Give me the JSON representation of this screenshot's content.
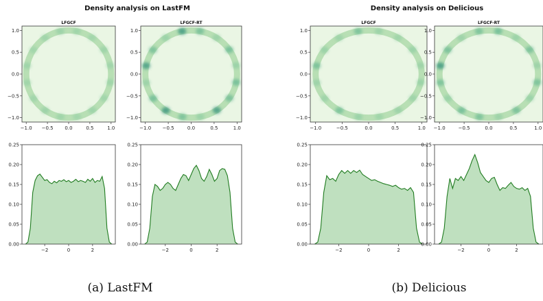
{
  "figure": {
    "captions": [
      "(a) LastFM",
      "(b) Delicious"
    ]
  },
  "chart_data": [
    {
      "type": "heatmap",
      "panel": "LastFM / LFGCF",
      "suptitle": "Density analysis on LastFM",
      "title": "LFGCF",
      "xlim": [
        -1.1,
        1.1
      ],
      "ylim": [
        -1.1,
        1.1
      ],
      "xticks": [
        -1.0,
        -0.5,
        0.0,
        0.5,
        1.0
      ],
      "yticks": [
        -1.0,
        -0.5,
        0.0,
        0.5,
        1.0
      ],
      "ring_radius": 1.0,
      "ring_density": [
        0.35,
        0.45,
        0.3,
        0.4,
        0.5,
        0.35,
        0.3,
        0.45,
        0.4,
        0.35,
        0.5,
        0.4,
        0.3,
        0.45,
        0.35,
        0.4
      ],
      "colormap": "Greens"
    },
    {
      "type": "heatmap",
      "panel": "LastFM / LFGCF-RT",
      "title": "LFGCF-RT",
      "xlim": [
        -1.1,
        1.1
      ],
      "ylim": [
        -1.1,
        1.1
      ],
      "xticks": [
        -1.0,
        -0.5,
        0.0,
        0.5,
        1.0
      ],
      "yticks": [
        -1.0,
        -0.5,
        0.0,
        0.5,
        1.0
      ],
      "ring_radius": 1.0,
      "ring_density": [
        0.55,
        0.7,
        0.5,
        0.65,
        0.8,
        0.55,
        0.6,
        0.75,
        0.5,
        0.7,
        0.85,
        0.6,
        0.55,
        0.75,
        0.65,
        0.7
      ],
      "colormap": "Greens"
    },
    {
      "type": "area",
      "panel": "LastFM / LFGCF angle KDE",
      "xlim": [
        -3.9,
        3.9
      ],
      "ylim": [
        0.0,
        0.25
      ],
      "xticks": [
        -2,
        0,
        2
      ],
      "yticks": [
        0.0,
        0.05,
        0.1,
        0.15,
        0.2,
        0.25
      ],
      "x": [
        -3.6,
        -3.4,
        -3.2,
        -3.0,
        -2.8,
        -2.6,
        -2.4,
        -2.2,
        -2.0,
        -1.8,
        -1.6,
        -1.4,
        -1.2,
        -1.0,
        -0.8,
        -0.6,
        -0.4,
        -0.2,
        0.0,
        0.2,
        0.4,
        0.6,
        0.8,
        1.0,
        1.2,
        1.4,
        1.6,
        1.8,
        2.0,
        2.2,
        2.4,
        2.6,
        2.8,
        3.0,
        3.2,
        3.4,
        3.6
      ],
      "y": [
        0.0,
        0.005,
        0.04,
        0.13,
        0.16,
        0.172,
        0.176,
        0.168,
        0.16,
        0.162,
        0.155,
        0.152,
        0.158,
        0.154,
        0.16,
        0.158,
        0.162,
        0.157,
        0.16,
        0.155,
        0.158,
        0.163,
        0.157,
        0.16,
        0.158,
        0.155,
        0.163,
        0.158,
        0.165,
        0.155,
        0.16,
        0.158,
        0.17,
        0.14,
        0.04,
        0.005,
        0.0
      ]
    },
    {
      "type": "area",
      "panel": "LastFM / LFGCF-RT angle KDE",
      "xlim": [
        -3.9,
        3.9
      ],
      "ylim": [
        0.0,
        0.25
      ],
      "xticks": [
        -2,
        0,
        2
      ],
      "yticks": [
        0.0,
        0.05,
        0.1,
        0.15,
        0.2,
        0.25
      ],
      "x": [
        -3.6,
        -3.4,
        -3.2,
        -3.0,
        -2.8,
        -2.6,
        -2.4,
        -2.2,
        -2.0,
        -1.8,
        -1.6,
        -1.4,
        -1.2,
        -1.0,
        -0.8,
        -0.6,
        -0.4,
        -0.2,
        0.0,
        0.2,
        0.4,
        0.6,
        0.8,
        1.0,
        1.2,
        1.4,
        1.6,
        1.8,
        2.0,
        2.2,
        2.4,
        2.6,
        2.8,
        3.0,
        3.2,
        3.4,
        3.6
      ],
      "y": [
        0.0,
        0.005,
        0.04,
        0.12,
        0.15,
        0.145,
        0.135,
        0.14,
        0.15,
        0.155,
        0.15,
        0.14,
        0.135,
        0.15,
        0.165,
        0.175,
        0.172,
        0.16,
        0.175,
        0.19,
        0.198,
        0.185,
        0.165,
        0.158,
        0.17,
        0.188,
        0.175,
        0.158,
        0.165,
        0.185,
        0.19,
        0.188,
        0.172,
        0.13,
        0.04,
        0.005,
        0.0
      ]
    },
    {
      "type": "heatmap",
      "panel": "Delicious / LFGCF",
      "suptitle": "Density analysis on Delicious",
      "title": "LFGCF",
      "xlim": [
        -1.1,
        1.1
      ],
      "ylim": [
        -1.1,
        1.1
      ],
      "xticks": [
        -1.0,
        -0.5,
        0.0,
        0.5,
        1.0
      ],
      "yticks": [
        -1.0,
        -0.5,
        0.0,
        0.5,
        1.0
      ],
      "ring_radius": 1.0,
      "ring_density": [
        0.45,
        0.55,
        0.4,
        0.5,
        0.6,
        0.45,
        0.55,
        0.65,
        0.5,
        0.45,
        0.6,
        0.55,
        0.4,
        0.5,
        0.45,
        0.55
      ],
      "colormap": "Greens"
    },
    {
      "type": "heatmap",
      "panel": "Delicious / LFGCF-RT",
      "title": "LFGCF-RT",
      "xlim": [
        -1.1,
        1.1
      ],
      "ylim": [
        -1.1,
        1.1
      ],
      "xticks": [
        -1.0,
        -0.5,
        0.0,
        0.5,
        1.0
      ],
      "yticks": [
        -1.0,
        -0.5,
        0.0,
        0.5,
        1.0
      ],
      "ring_radius": 1.0,
      "ring_density": [
        0.5,
        0.65,
        0.55,
        0.7,
        0.6,
        0.5,
        0.65,
        0.8,
        0.6,
        0.55,
        0.7,
        0.6,
        0.5,
        0.65,
        0.55,
        0.6
      ],
      "colormap": "Greens"
    },
    {
      "type": "area",
      "panel": "Delicious / LFGCF angle KDE",
      "xlim": [
        -3.9,
        3.9
      ],
      "ylim": [
        0.0,
        0.25
      ],
      "xticks": [
        -2,
        0,
        2
      ],
      "yticks": [
        0.0,
        0.05,
        0.1,
        0.15,
        0.2,
        0.25
      ],
      "x": [
        -3.6,
        -3.4,
        -3.2,
        -3.0,
        -2.8,
        -2.6,
        -2.4,
        -2.2,
        -2.0,
        -1.8,
        -1.6,
        -1.4,
        -1.2,
        -1.0,
        -0.8,
        -0.6,
        -0.4,
        -0.2,
        0.0,
        0.2,
        0.4,
        0.6,
        0.8,
        1.0,
        1.2,
        1.4,
        1.6,
        1.8,
        2.0,
        2.2,
        2.4,
        2.6,
        2.8,
        3.0,
        3.2,
        3.4,
        3.6
      ],
      "y": [
        0.0,
        0.005,
        0.04,
        0.13,
        0.172,
        0.162,
        0.165,
        0.158,
        0.175,
        0.185,
        0.178,
        0.185,
        0.178,
        0.185,
        0.18,
        0.186,
        0.175,
        0.17,
        0.165,
        0.16,
        0.162,
        0.158,
        0.155,
        0.152,
        0.15,
        0.148,
        0.145,
        0.148,
        0.142,
        0.138,
        0.14,
        0.135,
        0.142,
        0.13,
        0.04,
        0.005,
        0.0
      ]
    },
    {
      "type": "area",
      "panel": "Delicious / LFGCF-RT angle KDE",
      "xlim": [
        -3.9,
        3.9
      ],
      "ylim": [
        0.0,
        0.25
      ],
      "xticks": [
        -2,
        0,
        2
      ],
      "yticks": [
        0.0,
        0.05,
        0.1,
        0.15,
        0.2,
        0.25
      ],
      "x": [
        -3.6,
        -3.4,
        -3.2,
        -3.0,
        -2.8,
        -2.6,
        -2.4,
        -2.2,
        -2.0,
        -1.8,
        -1.6,
        -1.4,
        -1.2,
        -1.0,
        -0.8,
        -0.6,
        -0.4,
        -0.2,
        0.0,
        0.2,
        0.4,
        0.6,
        0.8,
        1.0,
        1.2,
        1.4,
        1.6,
        1.8,
        2.0,
        2.2,
        2.4,
        2.6,
        2.8,
        3.0,
        3.2,
        3.4,
        3.6
      ],
      "y": [
        0.0,
        0.005,
        0.04,
        0.12,
        0.165,
        0.14,
        0.165,
        0.16,
        0.17,
        0.16,
        0.175,
        0.19,
        0.21,
        0.225,
        0.205,
        0.18,
        0.17,
        0.16,
        0.155,
        0.165,
        0.168,
        0.15,
        0.135,
        0.142,
        0.14,
        0.148,
        0.155,
        0.145,
        0.14,
        0.138,
        0.142,
        0.135,
        0.14,
        0.12,
        0.04,
        0.005,
        0.0
      ]
    }
  ]
}
